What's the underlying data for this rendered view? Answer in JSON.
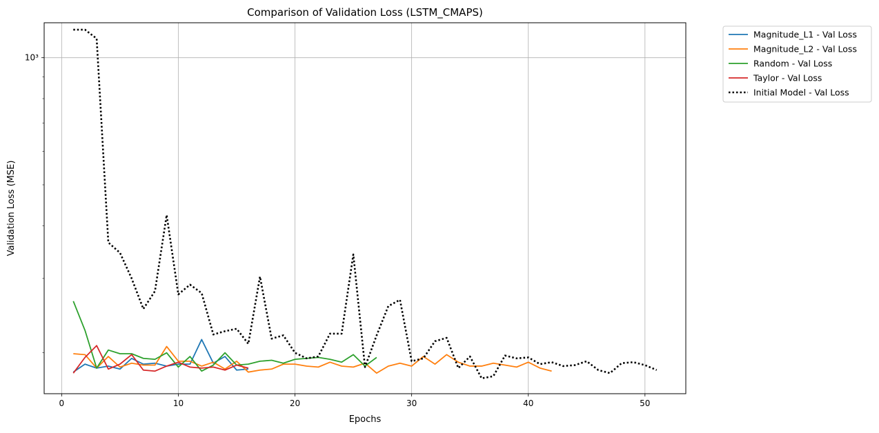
{
  "chart_data": {
    "type": "line",
    "title": "Comparison of Validation Loss (LSTM_CMAPS)",
    "xlabel": "Epochs",
    "ylabel": "Validation Loss (MSE)",
    "yscale": "log",
    "xlim": [
      -1.5,
      53.5
    ],
    "ylim": [
      160,
      1210
    ],
    "xticks": [
      0,
      10,
      20,
      30,
      40,
      50
    ],
    "xtick_labels": [
      "0",
      "10",
      "20",
      "30",
      "40",
      "50"
    ],
    "ytick_major": [
      1000
    ],
    "ytick_major_labels": [
      "10³"
    ],
    "ytick_minor": [
      200,
      300,
      400,
      500,
      600,
      700,
      800,
      900
    ],
    "grid": true,
    "legend_position": "outside-top-right",
    "series": [
      {
        "name": "Magnitude_L1 - Val Loss",
        "color": "#1f77b4",
        "style": "solid",
        "x": [
          1,
          2,
          3,
          4,
          5,
          6,
          7,
          8,
          9,
          10,
          11,
          12,
          13,
          14,
          15,
          16
        ],
        "y": [
          180,
          188,
          184,
          186,
          183,
          194,
          188,
          189,
          186,
          188,
          188,
          215,
          189,
          196,
          182,
          183
        ]
      },
      {
        "name": "Magnitude_L2 - Val Loss",
        "color": "#ff7f0e",
        "style": "solid",
        "x": [
          1,
          2,
          3,
          4,
          5,
          6,
          7,
          8,
          9,
          10,
          11,
          12,
          13,
          14,
          15,
          16,
          17,
          18,
          19,
          20,
          21,
          22,
          23,
          24,
          25,
          26,
          27,
          28,
          29,
          30,
          31,
          32,
          33,
          34,
          35,
          36,
          37,
          38,
          39,
          40,
          41,
          42
        ],
        "y": [
          199,
          198,
          184,
          196,
          185,
          189,
          187,
          187,
          207,
          191,
          191,
          186,
          190,
          183,
          191,
          180,
          182,
          183,
          188,
          188,
          186,
          185,
          190,
          186,
          185,
          189,
          179,
          186,
          189,
          186,
          196,
          188,
          198,
          190,
          186,
          186,
          189,
          187,
          185,
          190,
          184,
          181
        ]
      },
      {
        "name": "Random - Val Loss",
        "color": "#2ca02c",
        "style": "solid",
        "x": [
          1,
          2,
          3,
          4,
          5,
          6,
          7,
          8,
          9,
          10,
          11,
          12,
          13,
          14,
          15,
          16,
          17,
          18,
          19,
          20,
          21,
          22,
          23,
          24,
          25,
          26,
          27
        ],
        "y": [
          265,
          226,
          184,
          203,
          199,
          199,
          194,
          193,
          200,
          185,
          196,
          181,
          187,
          200,
          187,
          188,
          191,
          192,
          189,
          193,
          194,
          195,
          193,
          190,
          198,
          186,
          195
        ]
      },
      {
        "name": "Taylor - Val Loss",
        "color": "#d62728",
        "style": "solid",
        "x": [
          1,
          2,
          3,
          4,
          5,
          6,
          7,
          8,
          9,
          10,
          11,
          12,
          13,
          14,
          15,
          16
        ],
        "y": [
          179,
          195,
          208,
          183,
          188,
          198,
          182,
          181,
          186,
          190,
          185,
          184,
          185,
          182,
          187,
          184
        ]
      },
      {
        "name": "Initial Model - Val Loss",
        "color": "#000000",
        "style": "dotted",
        "x": [
          1,
          2,
          3,
          4,
          5,
          6,
          7,
          8,
          9,
          10,
          11,
          12,
          13,
          14,
          15,
          16,
          17,
          18,
          19,
          20,
          21,
          22,
          23,
          24,
          25,
          26,
          27,
          28,
          29,
          30,
          31,
          32,
          33,
          34,
          35,
          36,
          37,
          38,
          39,
          40,
          41,
          42,
          43,
          44,
          45,
          46,
          47,
          48,
          49,
          50,
          51
        ],
        "y": [
          1165,
          1165,
          1110,
          365,
          345,
          300,
          254,
          280,
          424,
          275,
          290,
          277,
          221,
          225,
          228,
          210,
          303,
          216,
          220,
          200,
          194,
          196,
          222,
          222,
          342,
          185,
          220,
          258,
          267,
          191,
          194,
          213,
          217,
          184,
          196,
          174,
          176,
          197,
          194,
          195,
          188,
          190,
          186,
          187,
          191,
          182,
          179,
          189,
          190,
          187,
          182
        ]
      }
    ]
  }
}
